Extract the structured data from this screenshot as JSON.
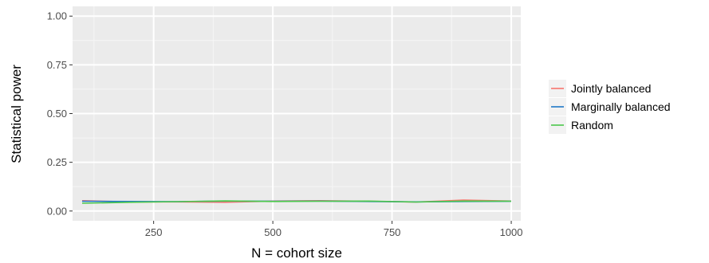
{
  "chart_data": {
    "type": "line",
    "xlabel": "N = cohort size",
    "ylabel": "Statistical power",
    "xlim": [
      80,
      1020
    ],
    "ylim": [
      -0.05,
      1.05
    ],
    "x_ticks": [
      250,
      500,
      750,
      1000
    ],
    "x_minor_ticks": [
      125,
      375,
      625,
      875
    ],
    "y_ticks": [
      0.0,
      0.25,
      0.5,
      0.75,
      1.0
    ],
    "y_tick_labels": [
      "0.00",
      "0.25",
      "0.50",
      "0.75",
      "1.00"
    ],
    "grid": true,
    "legend": "right",
    "x": [
      100,
      200,
      300,
      400,
      500,
      600,
      700,
      800,
      900,
      1000
    ],
    "series": [
      {
        "name": "Jointly balanced",
        "color": "#f8766d",
        "values": [
          0.053,
          0.047,
          0.047,
          0.045,
          0.051,
          0.053,
          0.05,
          0.046,
          0.056,
          0.051
        ]
      },
      {
        "name": "Marginally balanced",
        "color": "#1f78c8",
        "values": [
          0.05,
          0.049,
          0.048,
          0.051,
          0.05,
          0.051,
          0.049,
          0.047,
          0.049,
          0.05
        ]
      },
      {
        "name": "Random",
        "color": "#4cc84c",
        "values": [
          0.04,
          0.045,
          0.048,
          0.052,
          0.049,
          0.05,
          0.051,
          0.046,
          0.051,
          0.05
        ]
      }
    ]
  }
}
